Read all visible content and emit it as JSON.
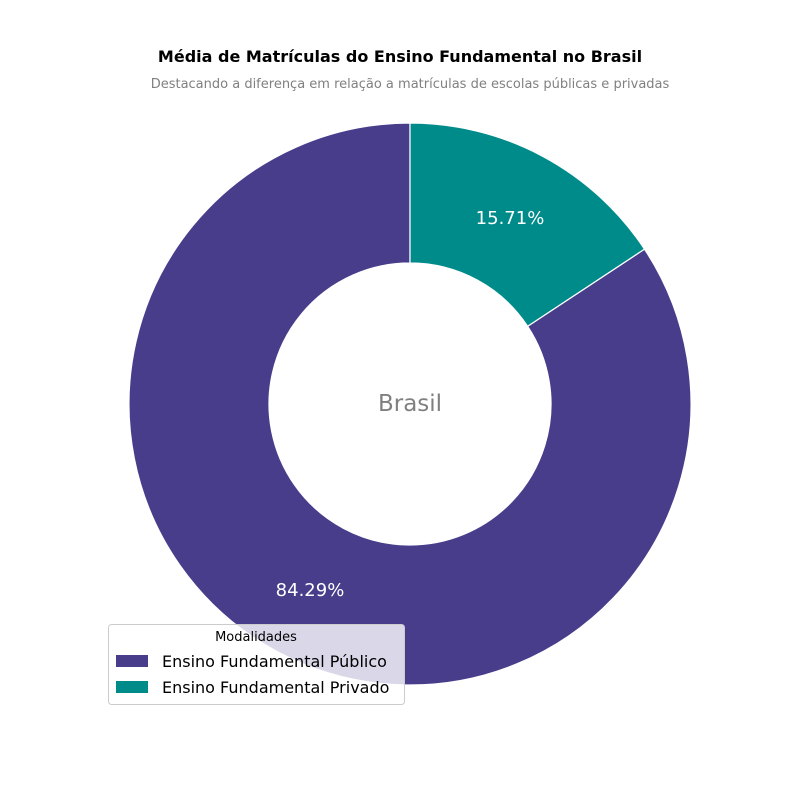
{
  "chart_data": {
    "type": "pie",
    "style": "donut",
    "title": "Média de Matrículas do Ensino Fundamental no Brasil",
    "subtitle": "Destacando a diferença em relação a matrículas de escolas públicas e privadas",
    "center_label": "Brasil",
    "slices": [
      {
        "label": "Ensino Fundamental Público",
        "value": 84.29,
        "display": "84.29%",
        "color": "#483D8B"
      },
      {
        "label": "Ensino Fundamental Privado",
        "value": 15.71,
        "display": "15.71%",
        "color": "#008B8B"
      }
    ],
    "legend": {
      "title": "Modalidades",
      "placement": "lower-left"
    }
  },
  "colors": {
    "background": "#ffffff",
    "title": "#000000",
    "subtitle": "#808080",
    "center_label": "#808080",
    "slice_label": "#ffffff"
  }
}
